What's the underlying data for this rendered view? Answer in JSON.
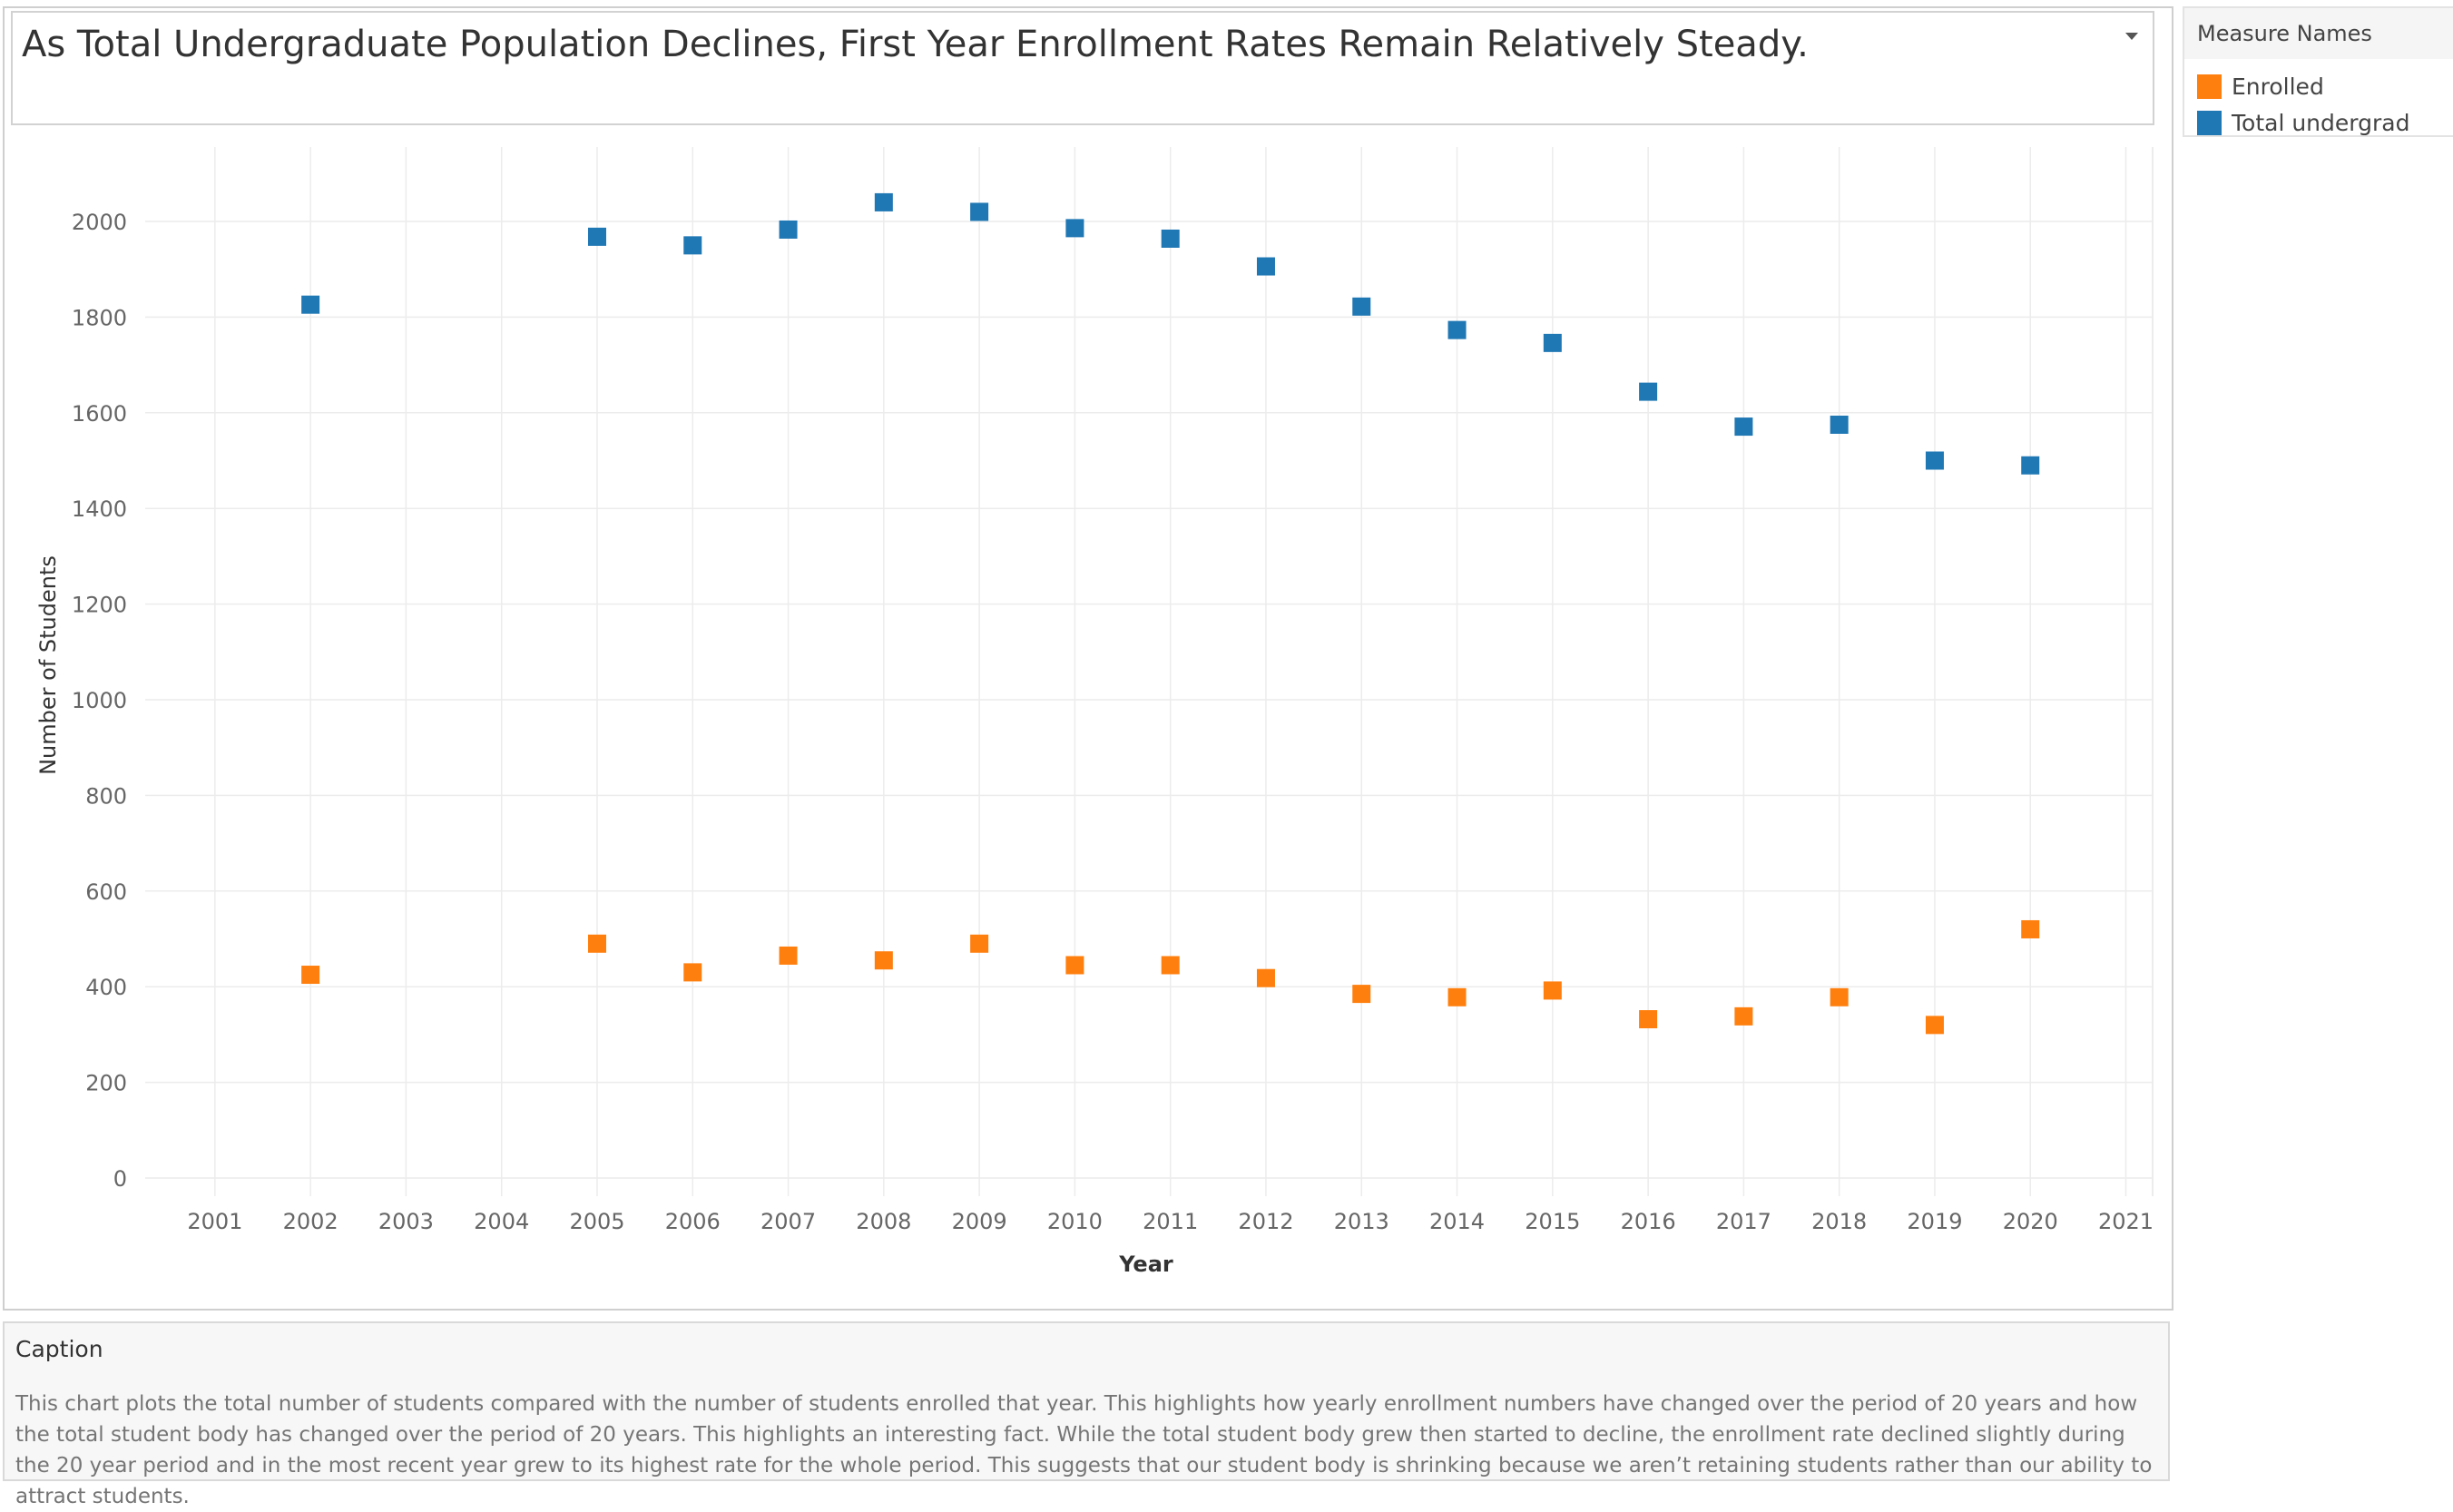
{
  "title": "As Total Undergraduate Population Declines, First Year Enrollment Rates Remain Relatively Steady.",
  "legend": {
    "title": "Measure Names",
    "items": [
      {
        "label": "Enrolled",
        "color": "#ff7f0e"
      },
      {
        "label": "Total undergrad",
        "color": "#1f77b4"
      }
    ]
  },
  "caption": {
    "title": "Caption",
    "text": "This chart plots the total number of students compared with the number of students enrolled that year. This highlights how yearly enrollment numbers have changed over the period of 20 years and how the total student body has changed over the period of 20 years. This highlights an interesting fact. While the total student body grew then started to decline, the enrollment rate declined slightly during the 20 year period and in the most recent year grew to its highest rate for the whole period. This suggests that our student body is shrinking because we aren’t retaining students rather than our ability to attract students."
  },
  "chart_data": {
    "type": "scatter",
    "title": "As Total Undergraduate Population Declines, First Year Enrollment Rates Remain Relatively Steady.",
    "xlabel": "Year",
    "ylabel": "Number of Students",
    "xlim": [
      2001,
      2021
    ],
    "ylim": [
      0,
      2100
    ],
    "x_ticks": [
      2001,
      2002,
      2003,
      2004,
      2005,
      2006,
      2007,
      2008,
      2009,
      2010,
      2011,
      2012,
      2013,
      2014,
      2015,
      2016,
      2017,
      2018,
      2019,
      2020,
      2021
    ],
    "y_ticks": [
      0,
      200,
      400,
      600,
      800,
      1000,
      1200,
      1400,
      1600,
      1800,
      2000
    ],
    "grid": true,
    "legend_position": "top-right",
    "x": [
      2002,
      2005,
      2006,
      2007,
      2008,
      2009,
      2010,
      2011,
      2012,
      2013,
      2014,
      2015,
      2016,
      2017,
      2018,
      2019,
      2020
    ],
    "series": [
      {
        "name": "Total undergrad",
        "color": "#1f77b4",
        "values": [
          1826,
          1968,
          1950,
          1983,
          2040,
          2020,
          1986,
          1964,
          1906,
          1822,
          1773,
          1746,
          1644,
          1571,
          1575,
          1500,
          1490
        ]
      },
      {
        "name": "Enrolled",
        "color": "#ff7f0e",
        "values": [
          425,
          490,
          430,
          465,
          455,
          490,
          445,
          445,
          418,
          385,
          378,
          392,
          332,
          338,
          378,
          320,
          520
        ]
      }
    ]
  }
}
